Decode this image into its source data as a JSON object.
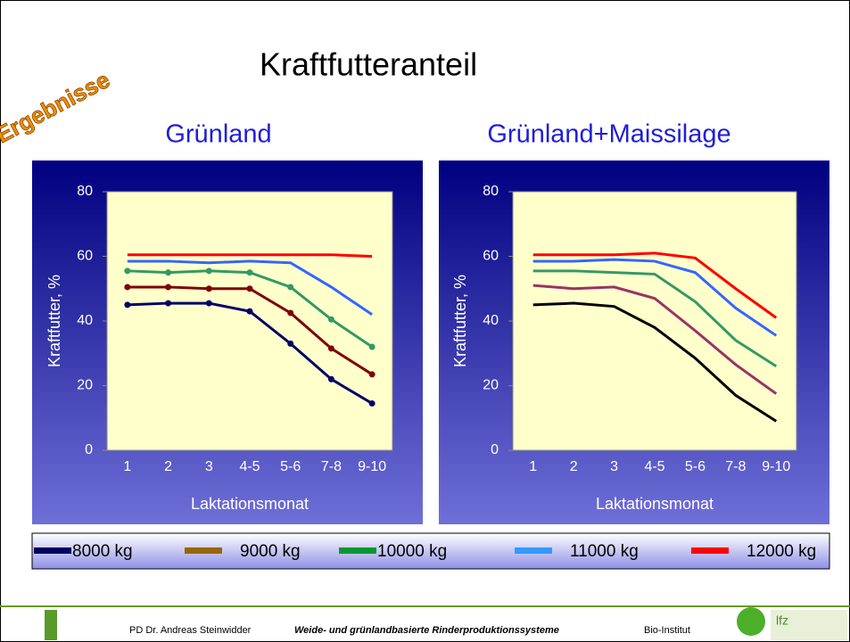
{
  "title": "Kraftfutteranteil",
  "badge": "Ergebnisse",
  "chart_data": [
    {
      "type": "line",
      "title": "Grünland",
      "x_label": "Laktationsmonat",
      "y_label": "Kraftfutter, %",
      "categories": [
        "1",
        "2",
        "3",
        "4-5",
        "5-6",
        "7-8",
        "9-10"
      ],
      "ylim": [
        0,
        80
      ],
      "yticks": [
        0,
        20,
        40,
        60,
        80
      ],
      "series": [
        {
          "name": "8000 kg",
          "color": "#000066",
          "marker": true,
          "values": [
            45,
            45.5,
            45.5,
            43,
            33,
            22,
            14.5
          ]
        },
        {
          "name": "9000 kg",
          "color": "#800000",
          "marker": true,
          "values": [
            50.5,
            50.5,
            50,
            50,
            42.5,
            31.5,
            23.5
          ]
        },
        {
          "name": "10000 kg",
          "color": "#339966",
          "marker": true,
          "values": [
            55.5,
            55,
            55.5,
            55,
            50.5,
            40.5,
            32
          ]
        },
        {
          "name": "11000 kg",
          "color": "#3366ff",
          "marker": false,
          "values": [
            58.5,
            58.5,
            58,
            58.5,
            58,
            50.5,
            42
          ]
        },
        {
          "name": "12000 kg",
          "color": "#ff0000",
          "marker": false,
          "values": [
            60.5,
            60.5,
            60.5,
            60.5,
            60.5,
            60.5,
            60
          ]
        }
      ]
    },
    {
      "type": "line",
      "title": "Grünland+Maissilage",
      "x_label": "Laktationsmonat",
      "y_label": "Kraftfutter, %",
      "categories": [
        "1",
        "2",
        "3",
        "4-5",
        "5-6",
        "7-8",
        "9-10"
      ],
      "ylim": [
        0,
        80
      ],
      "yticks": [
        0,
        20,
        40,
        60,
        80
      ],
      "series": [
        {
          "name": "8000 kg",
          "color": "#000000",
          "marker": false,
          "values": [
            45,
            45.5,
            44.5,
            38,
            28.5,
            17,
            9
          ]
        },
        {
          "name": "9000 kg",
          "color": "#993366",
          "marker": false,
          "values": [
            51,
            50,
            50.5,
            47,
            37,
            26.5,
            17.5
          ]
        },
        {
          "name": "10000 kg",
          "color": "#339966",
          "marker": false,
          "values": [
            55.5,
            55.5,
            55,
            54.5,
            46,
            34,
            26
          ]
        },
        {
          "name": "11000 kg",
          "color": "#3366ff",
          "marker": false,
          "values": [
            58.5,
            58.5,
            59,
            58.5,
            55,
            44,
            35.5
          ]
        },
        {
          "name": "12000 kg",
          "color": "#ff0000",
          "marker": false,
          "values": [
            60.5,
            60.5,
            60.5,
            61,
            59.5,
            50,
            41
          ]
        }
      ]
    }
  ],
  "legend": {
    "colors": [
      "#000066",
      "#996600",
      "#009933",
      "#3399ff",
      "#ff0000"
    ]
  },
  "footer": {
    "author": "PD Dr. Andreas Steinwidder",
    "topic": "Weide- und grünlandbasierte Rinderproduktionssysteme",
    "institute": "Bio-Institut",
    "logo": "lfz"
  }
}
